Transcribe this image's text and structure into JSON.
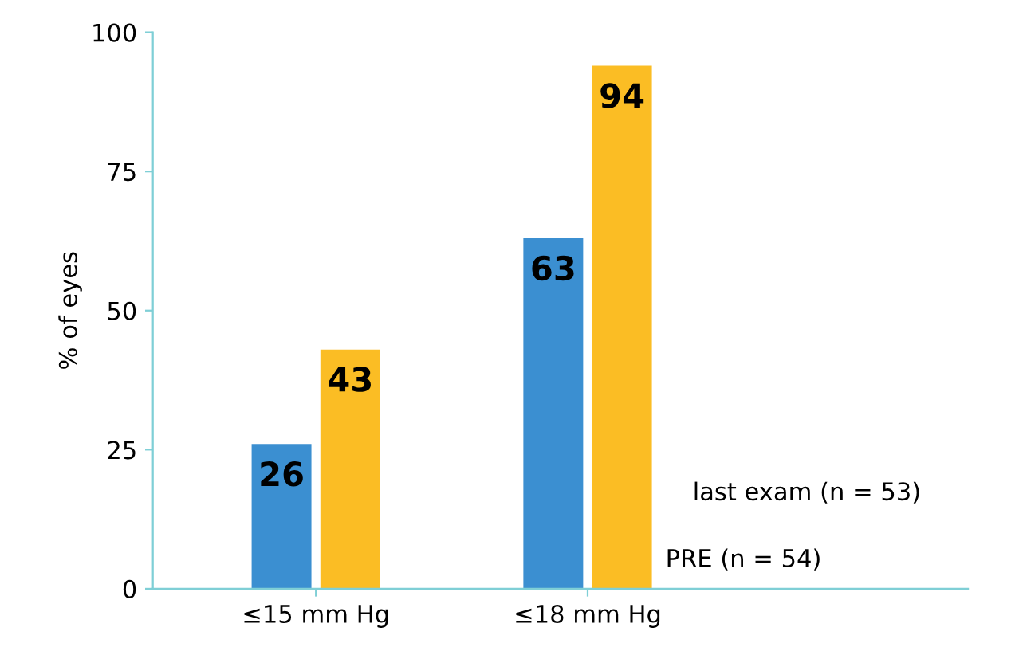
{
  "chart_data": {
    "type": "bar",
    "ylabel": "% of eyes",
    "categories": [
      "≤15 mm Hg",
      "≤18 mm Hg"
    ],
    "series": [
      {
        "name": "PRE (n = 54)",
        "color": "#3b8fd1",
        "values": [
          26,
          63
        ]
      },
      {
        "name": "last exam (n = 53)",
        "color": "#fbbd24",
        "values": [
          43,
          94
        ]
      }
    ],
    "ylim": [
      0,
      100
    ],
    "yticks": [
      0,
      25,
      50,
      75,
      100
    ],
    "data_labels": true,
    "grid": false,
    "legend": false
  }
}
